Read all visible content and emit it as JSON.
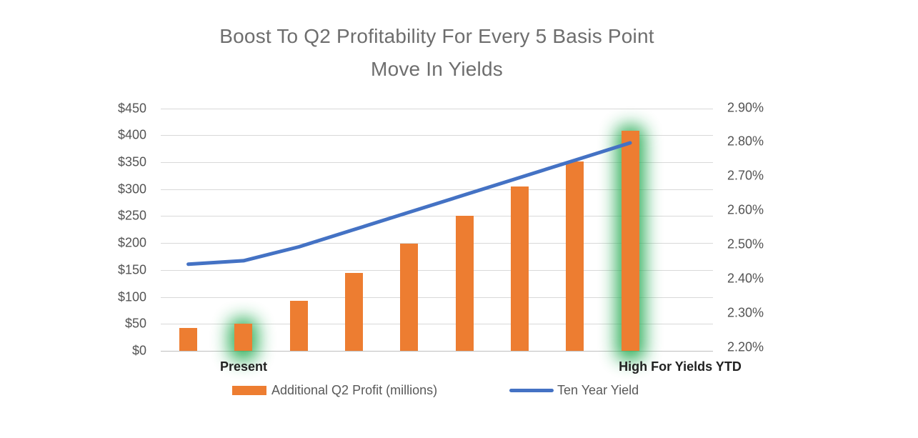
{
  "title": {
    "line1": "Boost To Q2 Profitability For Every 5 Basis Point",
    "line2": "Move In Yields"
  },
  "legend": {
    "items": [
      {
        "label": "Additional Q2 Profit (millions)",
        "swatch": "bar-swatch"
      },
      {
        "label": "Ten Year Yield",
        "swatch": "line-swatch"
      }
    ]
  },
  "colors": {
    "bar": "#ED7D31",
    "line": "#4472C4",
    "highlight_glow": "#2BAD58",
    "grid": "#D9D9D9",
    "axis_line": "#BFBFBF",
    "title_text": "#6E6E6E",
    "tick_text": "#545454",
    "category_text": "#222222",
    "legend_text": "#595959",
    "background": "#FFFFFF"
  },
  "chart_data": {
    "type": "combo (bar + line, dual axis)",
    "title": "Boost To Q2 Profitability For Every 5 Basis Point Move In Yields",
    "categories": [
      "",
      "Present",
      "",
      "",
      "",
      "",
      "",
      "",
      "High For Yields YTD"
    ],
    "series": [
      {
        "name": "Additional Q2 Profit (millions)",
        "render": "bar",
        "axis": "left",
        "color": "#ED7D31",
        "values": [
          42,
          50,
          93,
          145,
          199,
          251,
          305,
          351,
          408
        ]
      },
      {
        "name": "Ten Year Yield",
        "render": "line",
        "axis": "right",
        "color": "#4472C4",
        "values": [
          2.45,
          2.46,
          2.5,
          2.55,
          2.6,
          2.65,
          2.7,
          2.75,
          2.8
        ]
      }
    ],
    "left_axis": {
      "min": 0,
      "max": 450,
      "ticks": [
        "$450",
        "$400",
        "$350",
        "$300",
        "$250",
        "$200",
        "$150",
        "$100",
        "$50",
        "$0"
      ]
    },
    "right_axis": {
      "min": 2.2,
      "max": 2.9,
      "ticks": [
        "2.90%",
        "2.80%",
        "2.70%",
        "2.60%",
        "2.50%",
        "2.40%",
        "2.30%",
        "2.20%"
      ]
    },
    "x_axis_labels": [
      {
        "text": "Present",
        "category_index": 2
      },
      {
        "text": "High For Yields YTD",
        "category_index": 9
      }
    ],
    "highlighted_bars": [
      2,
      9
    ],
    "grid": "horizontal",
    "legend_position": "bottom"
  }
}
